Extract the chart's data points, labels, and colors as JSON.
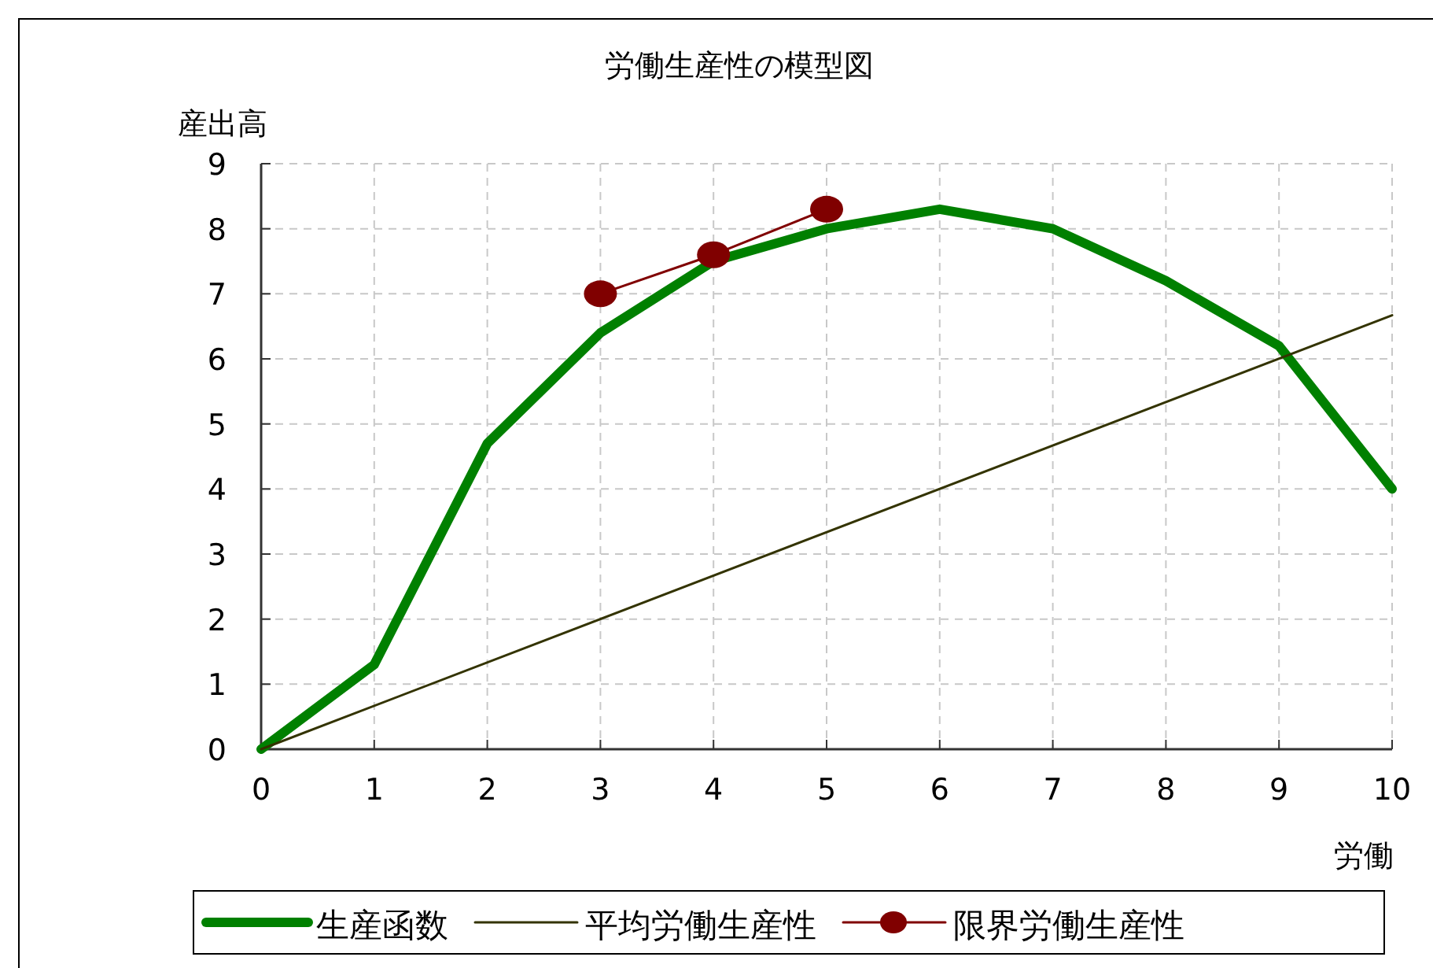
{
  "chart_data": {
    "type": "line",
    "title": "労働生産性の模型図",
    "xlabel": "労働",
    "ylabel": "産出高",
    "x": [
      0,
      1,
      2,
      3,
      4,
      5,
      6,
      7,
      8,
      9,
      10
    ],
    "series": [
      {
        "name": "生産函数",
        "color": "#008000",
        "values": [
          0,
          1.3,
          4.7,
          6.4,
          7.5,
          8.0,
          8.3,
          8.0,
          7.2,
          6.2,
          4.0
        ],
        "marker": "none"
      },
      {
        "name": "平均労働生産性",
        "color": "#333300",
        "x": [
          0,
          10
        ],
        "values": [
          0,
          6.67
        ],
        "marker": "none"
      },
      {
        "name": "限界労働生産性",
        "color": "#800000",
        "x": [
          3,
          4,
          5
        ],
        "values": [
          7.0,
          7.6,
          8.3
        ],
        "marker": "circle"
      }
    ],
    "xlim": [
      0,
      10
    ],
    "xticks": [
      0,
      1,
      2,
      3,
      4,
      5,
      6,
      7,
      8,
      9,
      10
    ],
    "ylim": [
      0,
      9
    ],
    "yticks": [
      0,
      1,
      2,
      3,
      4,
      5,
      6,
      7,
      8,
      9
    ],
    "grid": true,
    "legend": "bottom"
  }
}
